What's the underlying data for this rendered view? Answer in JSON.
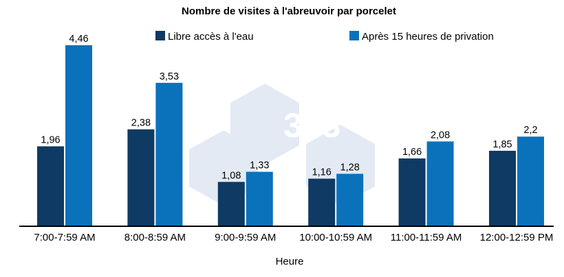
{
  "chart_data": {
    "type": "bar",
    "title": "Nombre de visites à l'abreuvoir par porcelet",
    "xlabel": "Heure",
    "ylabel": "",
    "categories": [
      "7:00-7:59 AM",
      "8:00-8:59 AM",
      "9:00-9:59 AM",
      "10:00-10:59 AM",
      "11:00-11:59 AM",
      "12:00-12:59 PM"
    ],
    "series": [
      {
        "name": "Libre accès à l'eau",
        "color": "#0e3a63",
        "values": [
          1.96,
          2.38,
          1.08,
          1.16,
          1.66,
          1.85
        ],
        "labels": [
          "1,96",
          "2,38",
          "1,08",
          "1,16",
          "1,66",
          "1,85"
        ]
      },
      {
        "name": "Après 15 heures de privation",
        "color": "#0a72bb",
        "values": [
          4.46,
          3.53,
          1.33,
          1.28,
          2.08,
          2.2
        ],
        "labels": [
          "4,46",
          "3,53",
          "1,33",
          "1,28",
          "2,08",
          "2,2"
        ]
      }
    ],
    "ylim": [
      0,
      4.9
    ],
    "legend": "top",
    "grid": false
  },
  "watermark": {
    "text": "333",
    "color": "#c9d6ea"
  }
}
